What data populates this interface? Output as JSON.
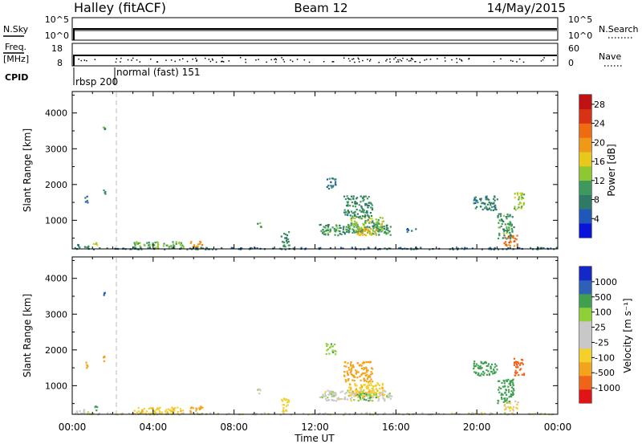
{
  "header": {
    "station": "Halley (fitACF)",
    "beam": "Beam 12",
    "date": "14/May/2015"
  },
  "left_labels": {
    "nsky": "N.Sky",
    "freq_top": "Freq.",
    "freq_unit": "[MHz]",
    "cpid": "CPID"
  },
  "right_labels": {
    "nsearch": "N.Search",
    "nave": "Nave"
  },
  "nsky_ticks": [
    "10^5",
    "10^0"
  ],
  "nsearch_ticks": [
    "10^5",
    "10^0"
  ],
  "freq_ticks": [
    "18",
    "8"
  ],
  "nave_ticks": [
    "60",
    "0"
  ],
  "cpid_labels": [
    "rbsp 200",
    "normal (fast) 151"
  ],
  "colors": {
    "power": [
      "#0a14d8",
      "#1f58b8",
      "#2e7a66",
      "#3d9a5c",
      "#8ec830",
      "#e8c818",
      "#f09818",
      "#f06a12",
      "#d83214",
      "#c01212"
    ],
    "velocity": [
      "#e01414",
      "#f0641a",
      "#f4a41c",
      "#f4d02a",
      "#c8c8c8",
      "#c8c8c8",
      "#8ed038",
      "#3fa050",
      "#2f60b8",
      "#1428c8"
    ],
    "ground_scatter": "#bdbdbd"
  },
  "chart_data": [
    {
      "type": "heatmap",
      "title": "Power",
      "ylabel": "Slant Range [km]",
      "xlabel": "",
      "x_ticks": [
        "00:00",
        "04:00",
        "08:00",
        "12:00",
        "16:00",
        "20:00",
        "00:00"
      ],
      "y_ticks": [
        1000,
        2000,
        3000,
        4000
      ],
      "ylim": [
        200,
        4600
      ],
      "colorbar": {
        "label": "Power [dB]",
        "ticks": [
          4,
          8,
          12,
          16,
          20,
          24,
          28
        ],
        "range": [
          0,
          30
        ]
      },
      "regions": [
        {
          "t": [
            0.1,
            0.8
          ],
          "r": [
            250,
            350
          ],
          "v": 8
        },
        {
          "t": [
            0.6,
            0.8
          ],
          "r": [
            1500,
            1700
          ],
          "v": 6
        },
        {
          "t": [
            1.0,
            1.2
          ],
          "r": [
            300,
            450
          ],
          "v": 16
        },
        {
          "t": [
            1.5,
            1.6
          ],
          "r": [
            1700,
            1900
          ],
          "v": 9
        },
        {
          "t": [
            1.5,
            1.6
          ],
          "r": [
            3550,
            3620
          ],
          "v": 10
        },
        {
          "t": [
            3.0,
            5.5
          ],
          "r": [
            220,
            420
          ],
          "v": 12
        },
        {
          "t": [
            5.8,
            6.4
          ],
          "r": [
            250,
            450
          ],
          "v": 20
        },
        {
          "t": [
            9.1,
            9.3
          ],
          "r": [
            800,
            950
          ],
          "v": 10
        },
        {
          "t": [
            10.3,
            10.7
          ],
          "r": [
            280,
            700
          ],
          "v": 9
        },
        {
          "t": [
            12.2,
            15.8
          ],
          "r": [
            600,
            900
          ],
          "v": 10
        },
        {
          "t": [
            13.6,
            15.4
          ],
          "r": [
            700,
            1100
          ],
          "v": 13
        },
        {
          "t": [
            14.0,
            15.0
          ],
          "r": [
            600,
            800
          ],
          "v": 18
        },
        {
          "t": [
            13.4,
            14.8
          ],
          "r": [
            1100,
            1700
          ],
          "v": 9
        },
        {
          "t": [
            12.5,
            13.0
          ],
          "r": [
            1900,
            2200
          ],
          "v": 7
        },
        {
          "t": [
            16.5,
            17.0
          ],
          "r": [
            700,
            800
          ],
          "v": 6
        },
        {
          "t": [
            19.8,
            21.0
          ],
          "r": [
            1300,
            1700
          ],
          "v": 8
        },
        {
          "t": [
            21.0,
            21.8
          ],
          "r": [
            500,
            1200
          ],
          "v": 10
        },
        {
          "t": [
            21.3,
            22.0
          ],
          "r": [
            300,
            600
          ],
          "v": 22
        },
        {
          "t": [
            21.8,
            22.3
          ],
          "r": [
            1300,
            1800
          ],
          "v": 14
        },
        {
          "t": [
            0.0,
            24.0
          ],
          "r": [
            210,
            260
          ],
          "v": 6
        }
      ]
    },
    {
      "type": "heatmap",
      "title": "Velocity",
      "ylabel": "Slant Range [km]",
      "xlabel": "Time UT",
      "x_ticks": [
        "00:00",
        "04:00",
        "08:00",
        "12:00",
        "16:00",
        "20:00",
        "00:00"
      ],
      "y_ticks": [
        1000,
        2000,
        3000,
        4000
      ],
      "ylim": [
        200,
        4600
      ],
      "colorbar": {
        "label": "Velocity [m s⁻¹]",
        "ticks": [
          1000,
          500,
          100,
          25,
          -25,
          -100,
          -500,
          -1000
        ]
      },
      "regions": [
        {
          "t": [
            0.1,
            0.8
          ],
          "r": [
            250,
            350
          ],
          "v": 0
        },
        {
          "t": [
            0.6,
            0.8
          ],
          "r": [
            1500,
            1700
          ],
          "v": -200
        },
        {
          "t": [
            1.0,
            1.2
          ],
          "r": [
            300,
            450
          ],
          "v": 150
        },
        {
          "t": [
            1.5,
            1.6
          ],
          "r": [
            1700,
            1900
          ],
          "v": -300
        },
        {
          "t": [
            1.5,
            1.6
          ],
          "r": [
            3550,
            3620
          ],
          "v": 800
        },
        {
          "t": [
            3.0,
            5.5
          ],
          "r": [
            220,
            420
          ],
          "v": -80
        },
        {
          "t": [
            5.8,
            6.4
          ],
          "r": [
            250,
            450
          ],
          "v": -300
        },
        {
          "t": [
            9.1,
            9.3
          ],
          "r": [
            800,
            950
          ],
          "v": 0
        },
        {
          "t": [
            10.3,
            10.7
          ],
          "r": [
            280,
            700
          ],
          "v": -60
        },
        {
          "t": [
            12.2,
            15.8
          ],
          "r": [
            600,
            900
          ],
          "v": 0
        },
        {
          "t": [
            13.6,
            15.4
          ],
          "r": [
            700,
            1100
          ],
          "v": -80
        },
        {
          "t": [
            14.0,
            15.0
          ],
          "r": [
            600,
            800
          ],
          "v": 100
        },
        {
          "t": [
            13.4,
            14.8
          ],
          "r": [
            1100,
            1700
          ],
          "v": -200
        },
        {
          "t": [
            12.5,
            13.0
          ],
          "r": [
            1900,
            2200
          ],
          "v": 80
        },
        {
          "t": [
            19.8,
            21.0
          ],
          "r": [
            1300,
            1700
          ],
          "v": 150
        },
        {
          "t": [
            21.0,
            21.8
          ],
          "r": [
            500,
            1200
          ],
          "v": 200
        },
        {
          "t": [
            21.3,
            22.0
          ],
          "r": [
            300,
            600
          ],
          "v": -40
        },
        {
          "t": [
            21.8,
            22.3
          ],
          "r": [
            1300,
            1800
          ],
          "v": -600
        },
        {
          "t": [
            0.0,
            24.0
          ],
          "r": [
            210,
            260
          ],
          "v": 0
        }
      ]
    }
  ]
}
